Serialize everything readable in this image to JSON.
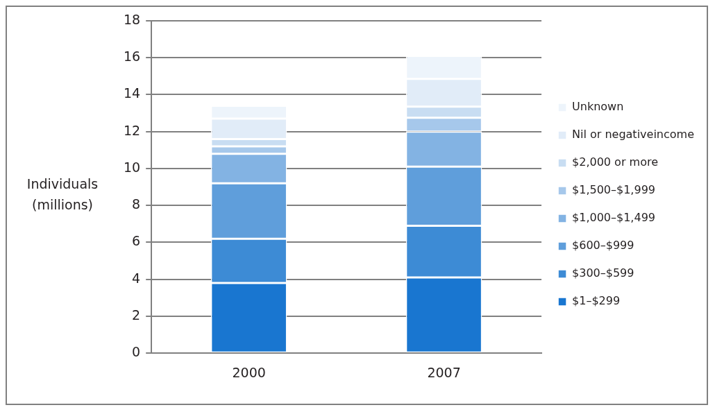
{
  "chart_data": {
    "type": "bar",
    "stacked": true,
    "ylabel": "Individuals (millions)",
    "categories": [
      "2000",
      "2007"
    ],
    "series": [
      {
        "name": "$1–$299",
        "color": "#1976d0",
        "values": [
          3.8,
          4.1
        ]
      },
      {
        "name": "$300–$599",
        "color": "#3d8bd5",
        "values": [
          2.4,
          2.8
        ]
      },
      {
        "name": "$600–$999",
        "color": "#5f9edb",
        "values": [
          3.0,
          3.2
        ]
      },
      {
        "name": "$1,000–$1,499",
        "color": "#83b3e3",
        "values": [
          1.6,
          1.9
        ]
      },
      {
        "name": "$1,500–$1,999",
        "color": "#a6c8eb",
        "values": [
          0.4,
          0.75
        ]
      },
      {
        "name": "$2,000 or more",
        "color": "#c8ddf2",
        "values": [
          0.4,
          0.6
        ]
      },
      {
        "name": "Nil or negativeincome",
        "color": "#e1ecf8",
        "values": [
          1.1,
          1.5
        ]
      },
      {
        "name": "Unknown",
        "color": "#edf4fb",
        "values": [
          0.7,
          1.25
        ]
      }
    ],
    "ylim": [
      0,
      18
    ],
    "yticks": [
      0,
      2,
      4,
      6,
      8,
      10,
      12,
      14,
      16,
      18
    ],
    "grid": "y",
    "legend": "right"
  }
}
